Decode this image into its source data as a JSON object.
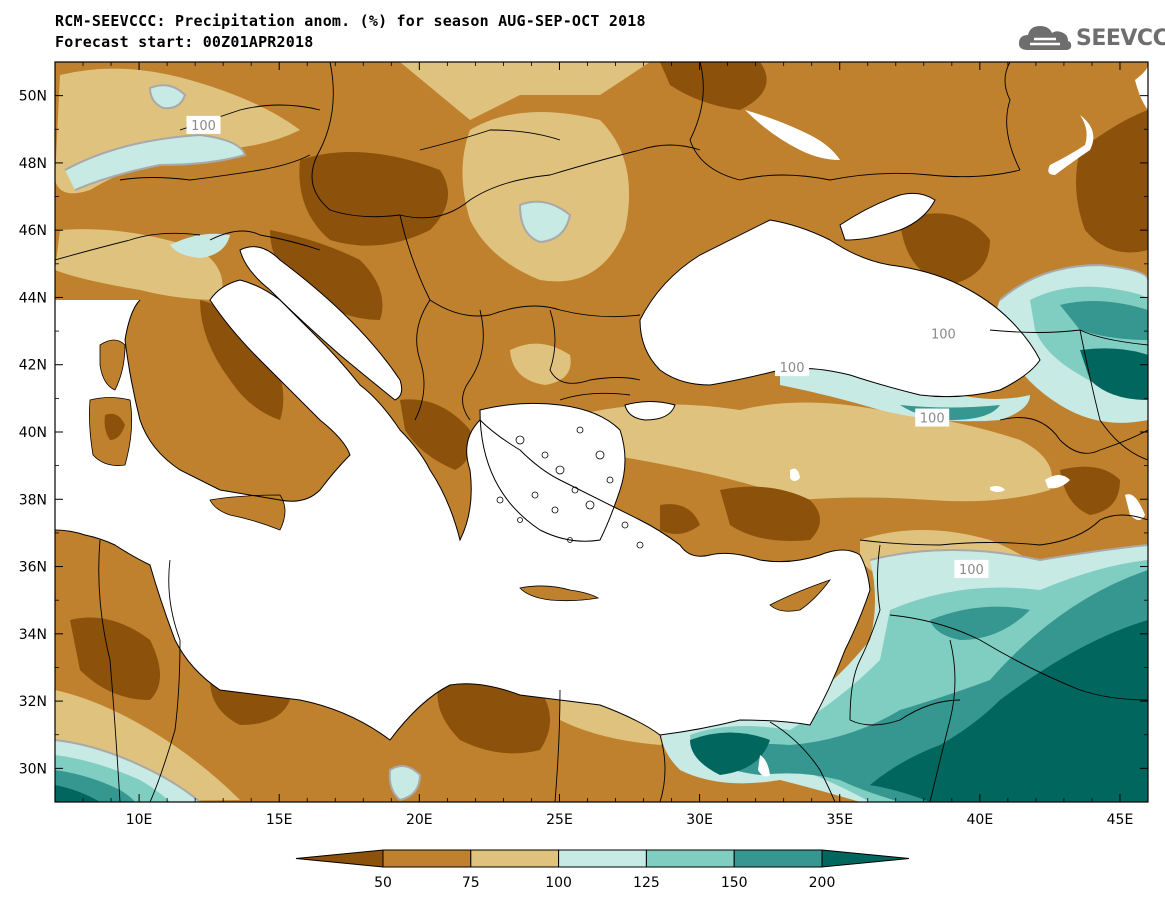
{
  "header": {
    "title_line1": "RCM-SEEVCCC: Precipitation anom. (%) for season AUG-SEP-OCT 2018",
    "title_line2": "Forecast start: 00Z01APR2018",
    "logo_text": "SEEVCCC",
    "logo_icon": "cloud-icon"
  },
  "map": {
    "lon_range": [
      7,
      46
    ],
    "lat_range": [
      29,
      51
    ],
    "lon_ticks": [
      {
        "lon": 10,
        "label": "10E"
      },
      {
        "lon": 15,
        "label": "15E"
      },
      {
        "lon": 20,
        "label": "20E"
      },
      {
        "lon": 25,
        "label": "25E"
      },
      {
        "lon": 30,
        "label": "30E"
      },
      {
        "lon": 35,
        "label": "35E"
      },
      {
        "lon": 40,
        "label": "40E"
      },
      {
        "lon": 45,
        "label": "45E"
      }
    ],
    "lat_ticks": [
      {
        "lat": 30,
        "label": "30N"
      },
      {
        "lat": 32,
        "label": "32N"
      },
      {
        "lat": 34,
        "label": "34N"
      },
      {
        "lat": 36,
        "label": "36N"
      },
      {
        "lat": 38,
        "label": "38N"
      },
      {
        "lat": 40,
        "label": "40N"
      },
      {
        "lat": 42,
        "label": "42N"
      },
      {
        "lat": 44,
        "label": "44N"
      },
      {
        "lat": 46,
        "label": "46N"
      },
      {
        "lat": 48,
        "label": "48N"
      },
      {
        "lat": 50,
        "label": "50N"
      }
    ],
    "contour_labels": [
      {
        "text": "100",
        "lon": 12.3,
        "lat": 49.1
      },
      {
        "text": "100",
        "lon": 38.7,
        "lat": 42.9
      },
      {
        "text": "100",
        "lon": 33.3,
        "lat": 41.9
      },
      {
        "text": "100",
        "lon": 38.3,
        "lat": 40.4
      },
      {
        "text": "100",
        "lon": 39.7,
        "lat": 35.9
      }
    ]
  },
  "colorbar": {
    "bins": [
      {
        "color": "#8c510a",
        "range": "<50"
      },
      {
        "color": "#bf812d",
        "range": "50-75"
      },
      {
        "color": "#dfc27d",
        "range": "75-100"
      },
      {
        "color": "#c7eae5",
        "range": "100-125"
      },
      {
        "color": "#80cdc1",
        "range": "125-150"
      },
      {
        "color": "#35978f",
        "range": "150-200"
      },
      {
        "color": "#01665e",
        "range": ">200"
      }
    ],
    "labels": [
      "50",
      "75",
      "100",
      "125",
      "150",
      "200"
    ]
  },
  "colors": {
    "sea": "#ffffff",
    "contour_100": "#a9a9a9",
    "border": "#000000"
  }
}
